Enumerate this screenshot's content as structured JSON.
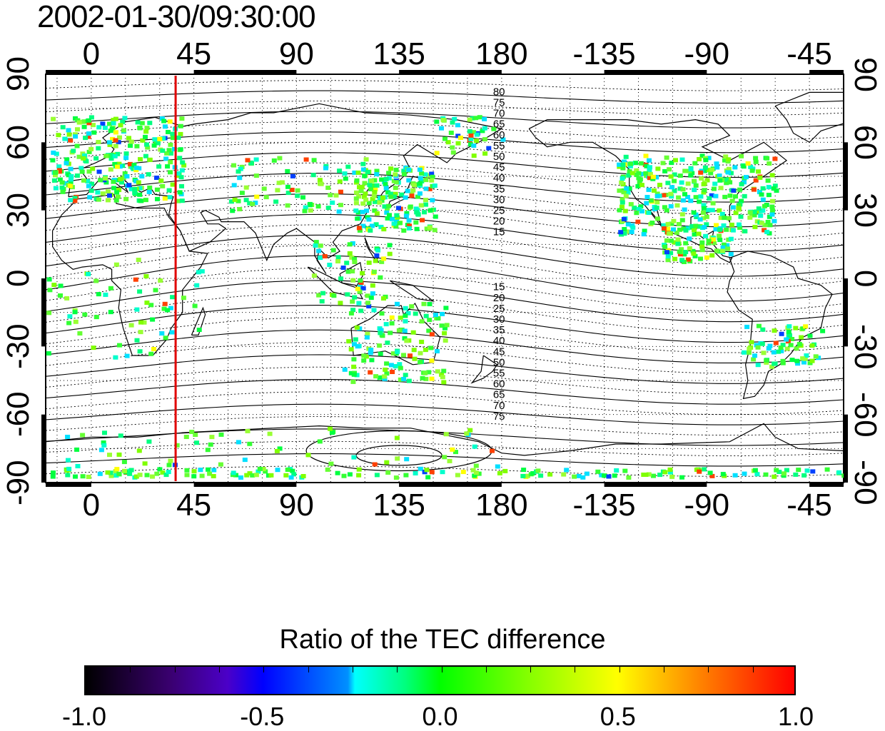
{
  "timestamp": "2002-01-30/09:30:00",
  "map": {
    "type": "global-map",
    "projection": "equirectangular",
    "lon_ticks": [
      "0",
      "45",
      "90",
      "135",
      "180",
      "-135",
      "-90",
      "-45"
    ],
    "lat_ticks_left": [
      "90",
      "60",
      "30",
      "0",
      "-30",
      "-60",
      "-90"
    ],
    "lat_ticks_right": [
      "90",
      "60",
      "30",
      "0",
      "-30",
      "-60",
      "-90"
    ],
    "lon_range": [
      -20,
      330
    ],
    "lat_range": [
      -90,
      90
    ],
    "grid": true,
    "marker_line": {
      "lon": 37,
      "color": "#e00000"
    },
    "contour_labels_north": [
      "80",
      "75",
      "70",
      "65",
      "60",
      "55",
      "50",
      "45",
      "40",
      "35",
      "30",
      "25",
      "20",
      "15"
    ],
    "contour_labels_south": [
      "15",
      "20",
      "25",
      "30",
      "35",
      "40",
      "45",
      "50",
      "55",
      "60",
      "65",
      "70",
      "75"
    ]
  },
  "colorbar": {
    "title": "Ratio of the TEC difference",
    "tick_labels": [
      "-1.0",
      "-0.5",
      "0.0",
      "0.5",
      "1.0"
    ],
    "range": [
      -1.0,
      1.0
    ],
    "colors": [
      "#000000",
      "#4b00c8",
      "#0000ff",
      "#00ffff",
      "#00ff00",
      "#ffff00",
      "#ff0000"
    ]
  }
}
